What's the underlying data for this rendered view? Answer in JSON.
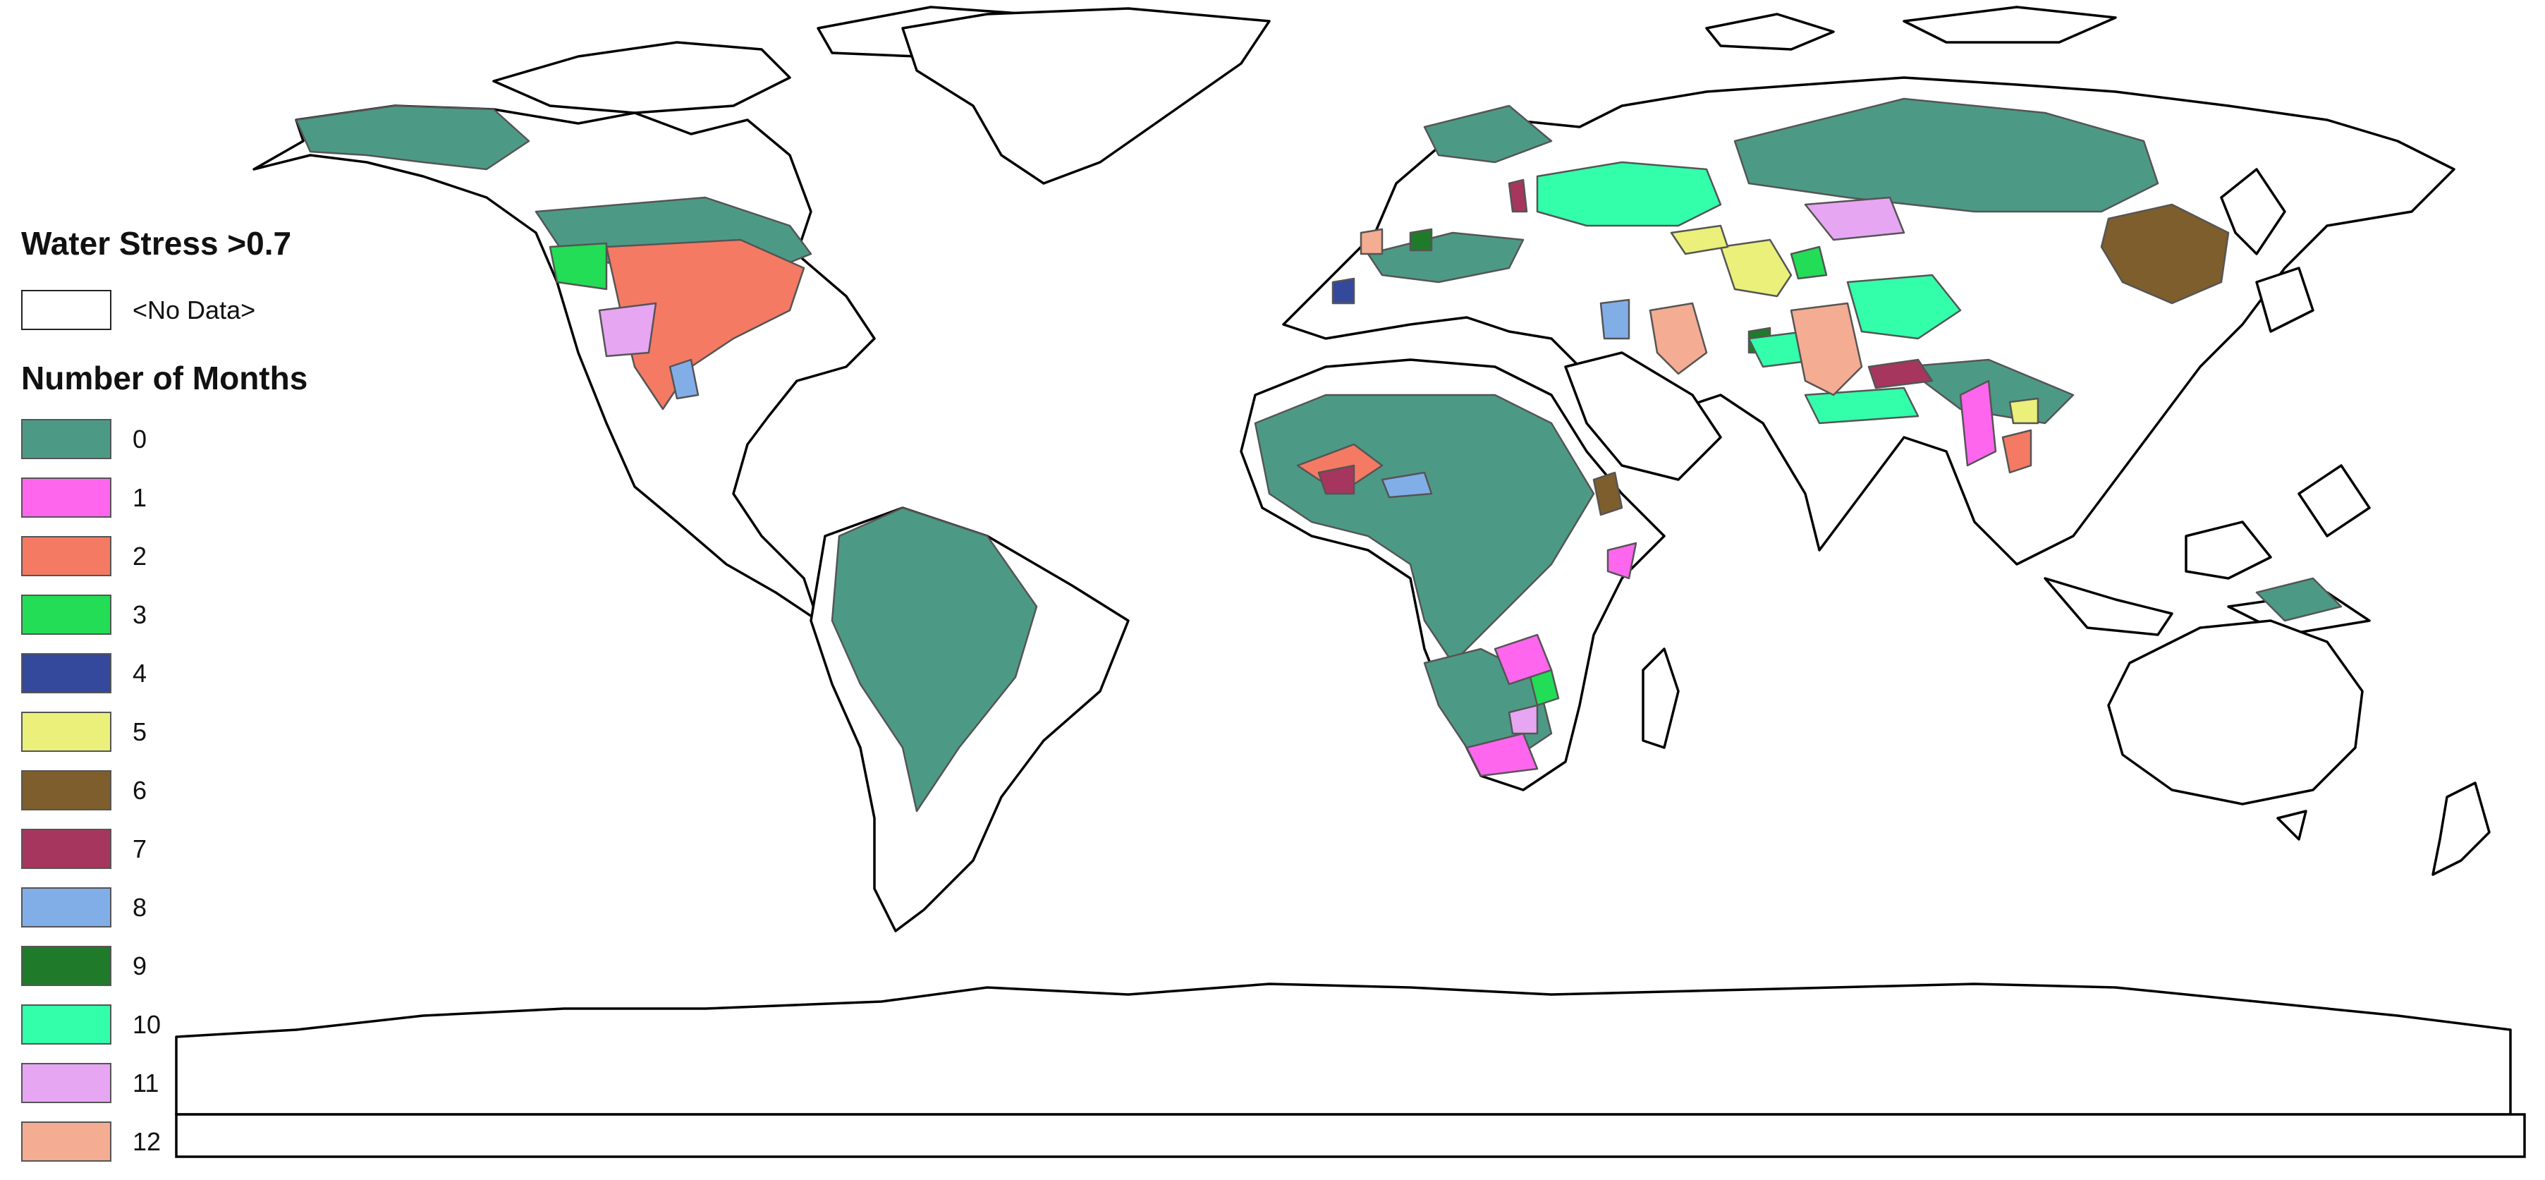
{
  "legend": {
    "title": "Water Stress >0.7",
    "no_data_label": "<No Data>",
    "no_data_color": "#ffffff",
    "subtitle": "Number of Months",
    "classes": [
      {
        "label": "0",
        "color": "#4c9a86",
        "icon": "swatch"
      },
      {
        "label": "1",
        "color": "#ff66ee",
        "icon": "swatch"
      },
      {
        "label": "2",
        "color": "#f47a64",
        "icon": "swatch"
      },
      {
        "label": "3",
        "color": "#22dd55",
        "icon": "swatch"
      },
      {
        "label": "4",
        "color": "#34489c",
        "icon": "swatch"
      },
      {
        "label": "5",
        "color": "#eaf07a",
        "icon": "swatch"
      },
      {
        "label": "6",
        "color": "#7d5e2c",
        "icon": "swatch"
      },
      {
        "label": "7",
        "color": "#a6365e",
        "icon": "swatch"
      },
      {
        "label": "8",
        "color": "#82aee8",
        "icon": "swatch"
      },
      {
        "label": "9",
        "color": "#1f7a2a",
        "icon": "swatch"
      },
      {
        "label": "10",
        "color": "#33ffaa",
        "icon": "swatch"
      },
      {
        "label": "11",
        "color": "#e6a6f2",
        "icon": "swatch"
      },
      {
        "label": "12",
        "color": "#f4ac92",
        "icon": "swatch"
      }
    ]
  },
  "map": {
    "projection": "world equirectangular",
    "land_color": "#ffffff",
    "outline_color": "#000000",
    "basin_border_color": "#555555"
  }
}
